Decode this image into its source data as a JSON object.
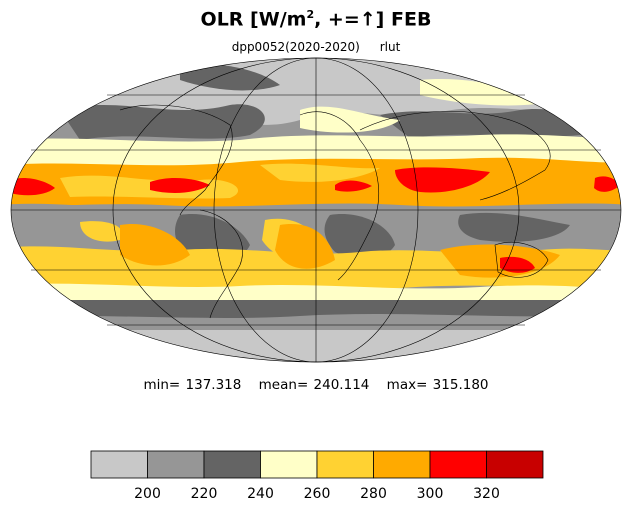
{
  "title": {
    "main_prefix": "OLR [W/m",
    "superscript": "2",
    "main_suffix": ", +=↑] FEB"
  },
  "subtitle": {
    "case": "dpp0052(2020-2020)",
    "variable": "rlut"
  },
  "stats": {
    "min": "min= 137.318",
    "mean": "mean= 240.114",
    "max": "max= 315.180"
  },
  "colorbar": {
    "levels": [
      200,
      220,
      240,
      260,
      280,
      300,
      320
    ],
    "tick_labels": [
      "200",
      "220",
      "240",
      "260",
      "280",
      "300",
      "320"
    ],
    "colors": [
      "#c8c8c8",
      "#969696",
      "#646464",
      "#ffffc8",
      "#ffd232",
      "#ffaa00",
      "#ff0000",
      "#c80000"
    ]
  },
  "map": {
    "projection": "mollweide",
    "colors": {
      "g1": "#c8c8c8",
      "g2": "#969696",
      "g3": "#646464",
      "y1": "#ffffc8",
      "y2": "#ffd232",
      "o": "#ffaa00",
      "r": "#ff0000",
      "dr": "#c80000"
    }
  }
}
